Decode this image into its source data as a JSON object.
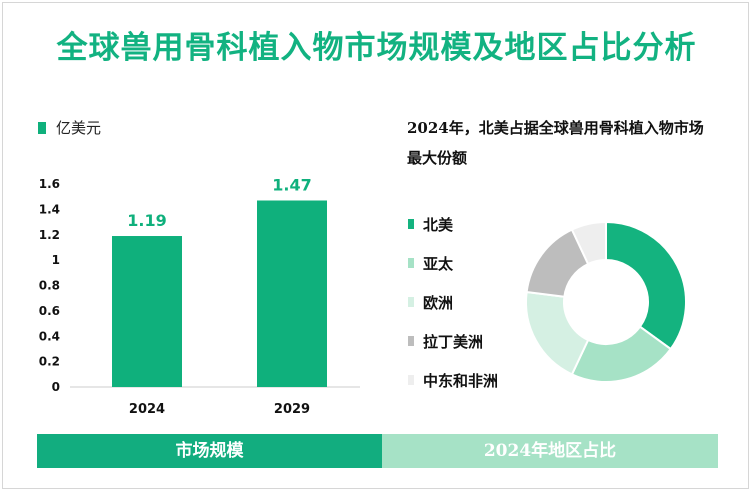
{
  "title": "全球兽用骨科植入物市场规模及地区占比分析",
  "colors": {
    "title": "#12b281",
    "bar": "#0fb07c",
    "footer_left": "#12ad7f",
    "footer_right": "#a6e2c6"
  },
  "note": "2024年，北美占据全球兽用骨科植入物市场最大份额",
  "footer": {
    "left_label": "市场规模",
    "right_label": "2024年地区占比"
  },
  "chart_data": [
    {
      "type": "bar",
      "title": "",
      "ylabel": "亿美元",
      "categories": [
        "2024",
        "2029"
      ],
      "values": [
        1.19,
        1.47
      ],
      "data_labels": [
        "1.19",
        "1.47"
      ],
      "ylim": [
        0,
        1.6
      ],
      "yticks": [
        "0",
        "0.2",
        "0.4",
        "0.6",
        "0.8",
        "1",
        "1.2",
        "1.4",
        "1.6"
      ],
      "grid": false,
      "legend": "top-left"
    },
    {
      "type": "pie",
      "donut": true,
      "title": "",
      "labels": [
        "北美",
        "亚太",
        "欧洲",
        "拉丁美洲",
        "中东和非洲"
      ],
      "values": [
        35,
        22,
        20,
        16,
        7
      ],
      "colors": [
        "#14b37f",
        "#a6e2c6",
        "#d5f0e3",
        "#bdbdbd",
        "#eeeeee"
      ],
      "legend": "left"
    }
  ]
}
